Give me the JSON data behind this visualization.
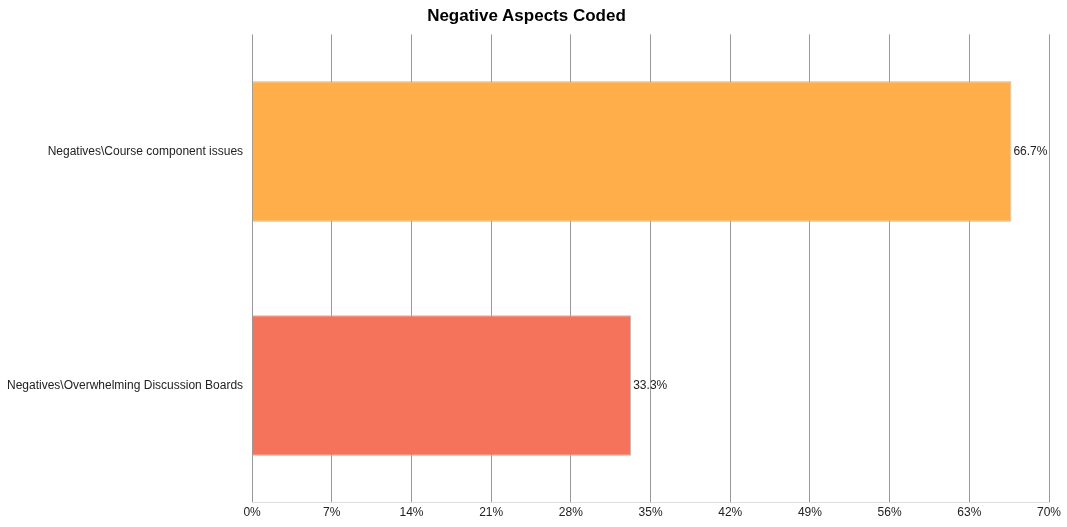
{
  "chart_data": {
    "type": "bar",
    "orientation": "horizontal",
    "title": "Negative Aspects Coded",
    "categories": [
      "Negatives\\Course component issues",
      "Negatives\\Overwhelming Discussion Boards"
    ],
    "values": [
      66.7,
      33.3
    ],
    "colors": [
      "#ffae4a",
      "#f4735a"
    ],
    "value_labels": [
      "66.7%",
      "33.3%"
    ],
    "xlim": [
      0,
      70
    ],
    "xticks": [
      {
        "value": 0,
        "label": "0%"
      },
      {
        "value": 7,
        "label": "7%"
      },
      {
        "value": 14,
        "label": "14%"
      },
      {
        "value": 21,
        "label": "21%"
      },
      {
        "value": 28,
        "label": "28%"
      },
      {
        "value": 35,
        "label": "35%"
      },
      {
        "value": 42,
        "label": "42%"
      },
      {
        "value": 49,
        "label": "49%"
      },
      {
        "value": 56,
        "label": "56%"
      },
      {
        "value": 63,
        "label": "63%"
      },
      {
        "value": 70,
        "label": "70%"
      }
    ],
    "grid": "x",
    "legend": false
  }
}
